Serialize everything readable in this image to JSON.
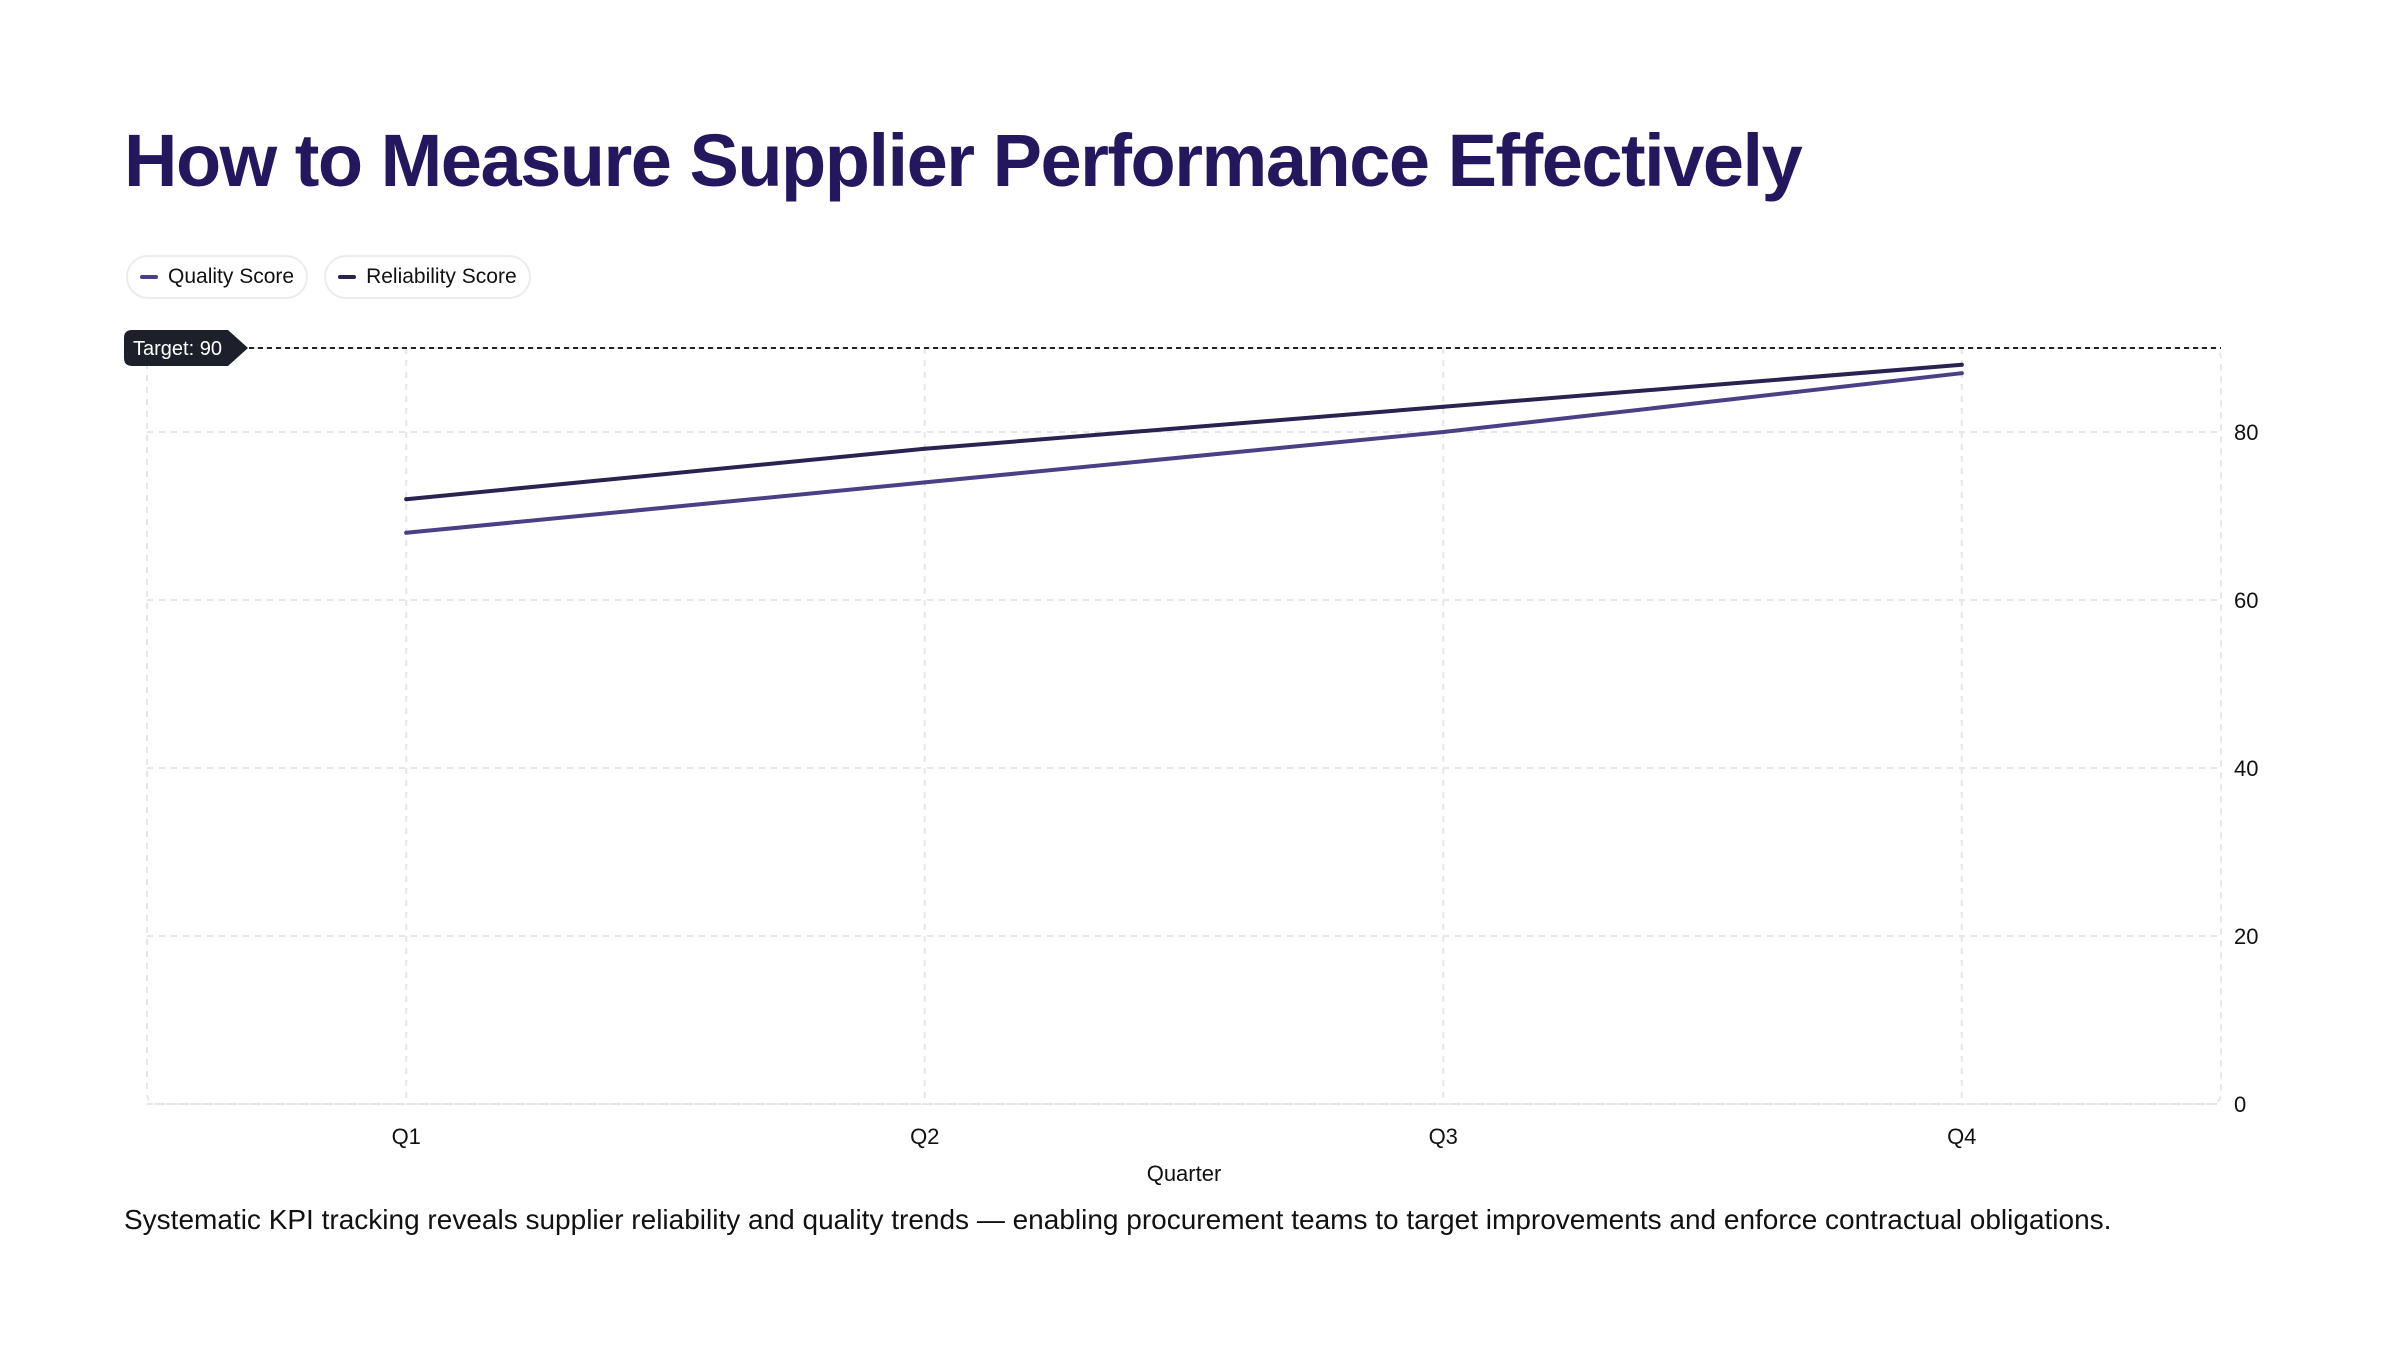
{
  "title": "How to Measure Supplier Performance Effectively",
  "caption": "Systematic KPI tracking reveals supplier reliability and quality trends — enabling procurement teams to target improvements and enforce contractual obligations.",
  "chart_data": {
    "type": "line",
    "categories": [
      "Q1",
      "Q2",
      "Q3",
      "Q4"
    ],
    "xlabel": "Quarter",
    "ylabel": "",
    "ylim": [
      0,
      90
    ],
    "yticks": [
      0,
      20,
      40,
      60,
      80
    ],
    "grid": true,
    "legend": "top-left",
    "y_axis_side": "right",
    "series": [
      {
        "name": "Quality Score",
        "color": "#4b3f86",
        "values": [
          68,
          74,
          80,
          87
        ]
      },
      {
        "name": "Reliability Score",
        "color": "#2a2250",
        "values": [
          72,
          78,
          83,
          88
        ]
      }
    ],
    "reference_line": {
      "value": 90,
      "label": "Target: 90",
      "style": "dashed"
    }
  }
}
